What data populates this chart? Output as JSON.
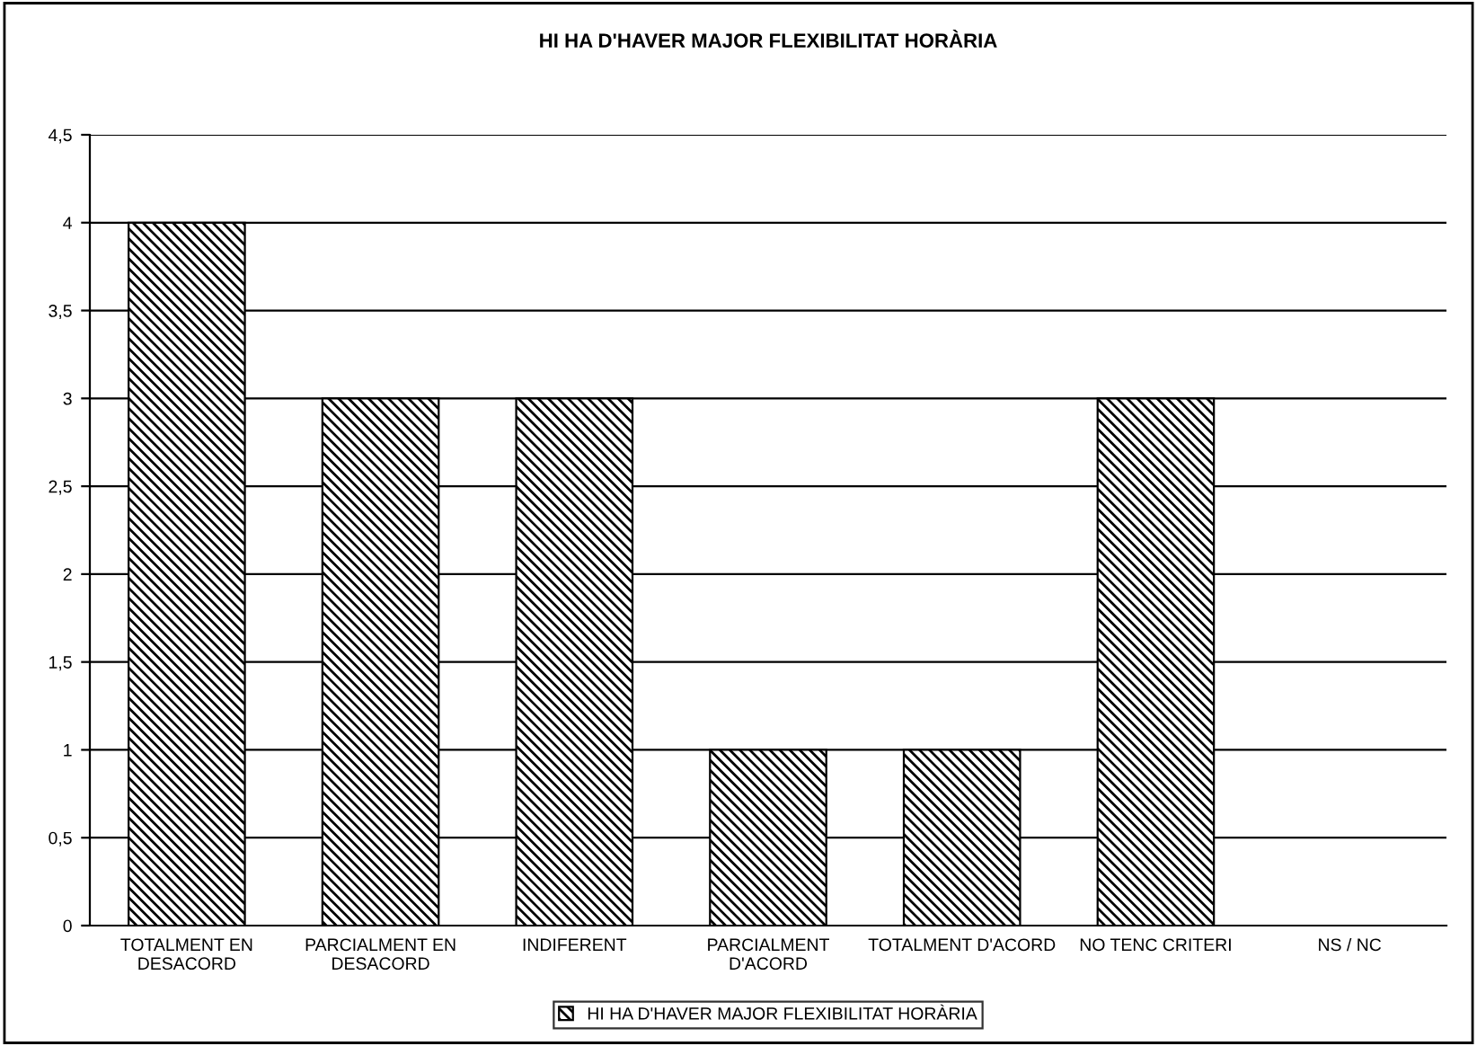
{
  "chart_data": {
    "type": "bar",
    "title": "HI HA D'HAVER MAJOR FLEXIBILITAT HORÀRIA",
    "categories": [
      "TOTALMENT EN\nDESACORD",
      "PARCIALMENT EN\nDESACORD",
      "INDIFERENT",
      "PARCIALMENT\nD'ACORD",
      "TOTALMENT D'ACORD",
      "NO TENC CRITERI",
      "NS / NC"
    ],
    "series": [
      {
        "name": "HI HA D'HAVER MAJOR FLEXIBILITAT HORÀRIA",
        "color": "#000000",
        "values": [
          4,
          3,
          3,
          1,
          1,
          3,
          0
        ]
      }
    ],
    "ylim": [
      0,
      4.5
    ],
    "yticks": [
      0,
      {
        "value": 0.5,
        "label": "0,5"
      },
      1,
      {
        "value": 1.5,
        "label": "1,5"
      },
      2,
      {
        "value": 2.5,
        "label": "2,5"
      },
      3,
      {
        "value": 3.5,
        "label": "3,5"
      },
      4,
      {
        "value": 4.5,
        "label": "4,5"
      }
    ],
    "grid": "y",
    "legend": "bottom"
  }
}
